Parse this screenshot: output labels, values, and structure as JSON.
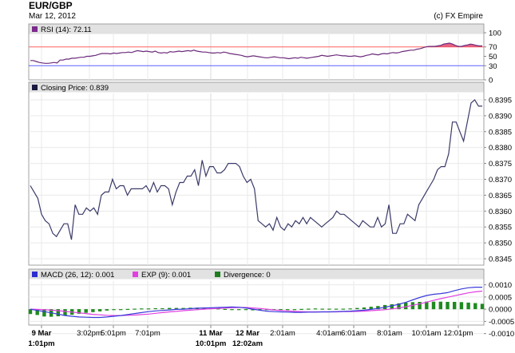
{
  "header": {
    "symbol": "EUR/GBP",
    "date": "Mar 12, 2012",
    "credit": "(c) FX Empire"
  },
  "colors": {
    "rsi_line": "#6b2b7b",
    "rsi_overbought_fill": "#e0486e",
    "rsi_line_70": "#ff6060",
    "rsi_line_30": "#6060ff",
    "price_line": "#3a3a6a",
    "macd_line": "#3b3bdc",
    "exp_line": "#e040e0",
    "divergence_bar": "#1f8a1f",
    "panel_bar": "#e2e2e2",
    "grid": "#e9e9e9"
  },
  "chart_data": [
    {
      "type": "line",
      "panel": "rsi",
      "legend": {
        "label": "RSI (14): 72.11",
        "swatch_color": "#7b2b8b"
      },
      "ylim": [
        0,
        100
      ],
      "y_ticks": [
        "100",
        "70",
        "50",
        "30",
        "0"
      ],
      "reference_levels": [
        70,
        30
      ],
      "series": [
        {
          "name": "RSI (14)",
          "values": [
            41,
            41,
            39,
            37,
            36,
            35,
            35,
            36,
            37,
            36,
            42,
            42,
            44,
            44,
            46,
            46,
            47,
            48,
            48,
            50,
            50,
            51,
            52,
            54,
            56,
            56,
            56,
            55,
            57,
            56,
            57,
            58,
            58,
            59,
            58,
            60,
            62,
            61,
            60,
            61,
            60,
            59,
            61,
            58,
            57,
            58,
            57,
            60,
            59,
            60,
            61,
            60,
            61,
            62,
            61,
            63,
            61,
            60,
            59,
            59,
            58,
            57,
            57,
            58,
            57,
            59,
            58,
            56,
            55,
            54,
            53,
            52,
            50,
            49,
            50,
            51,
            50,
            49,
            48,
            47,
            47,
            48,
            49,
            48,
            47,
            47,
            46,
            45,
            46,
            47,
            46,
            48,
            47,
            46,
            47,
            48,
            49,
            50,
            52,
            51,
            50,
            51,
            52,
            53,
            52,
            51,
            51,
            50,
            50,
            51,
            50,
            49,
            50,
            52,
            53,
            55,
            54,
            53,
            55,
            56,
            55,
            57,
            58,
            57,
            58,
            60,
            61,
            62,
            63,
            63,
            65,
            66,
            68,
            70,
            71,
            71,
            71,
            72,
            73,
            76,
            77,
            78,
            76,
            73,
            71,
            71,
            73,
            74,
            76,
            75,
            73,
            72,
            72
          ]
        }
      ]
    },
    {
      "type": "line",
      "panel": "price",
      "legend": {
        "label": "Closing Price: 0.839",
        "swatch_color": "#1a1a40"
      },
      "ylim": [
        0.8343,
        0.8397
      ],
      "y_ticks": [
        "0.8395",
        "0.8390",
        "0.8385",
        "0.8380",
        "0.8375",
        "0.8370",
        "0.8365",
        "0.8360",
        "0.8355",
        "0.8350",
        "0.8345"
      ],
      "series": [
        {
          "name": "Closing Price",
          "values": [
            0.8368,
            0.8366,
            0.8364,
            0.8359,
            0.8357,
            0.8356,
            0.8353,
            0.8352,
            0.8354,
            0.8356,
            0.8356,
            0.8351,
            0.8362,
            0.8359,
            0.8359,
            0.8361,
            0.836,
            0.8361,
            0.8359,
            0.8365,
            0.8366,
            0.8366,
            0.837,
            0.8367,
            0.8368,
            0.8368,
            0.8365,
            0.8367,
            0.8367,
            0.8367,
            0.8367,
            0.8368,
            0.8366,
            0.8369,
            0.8366,
            0.8368,
            0.8368,
            0.8367,
            0.8362,
            0.8366,
            0.8369,
            0.8369,
            0.8371,
            0.8371,
            0.8373,
            0.8368,
            0.8376,
            0.8371,
            0.8374,
            0.8374,
            0.8372,
            0.8372,
            0.8373,
            0.8375,
            0.8375,
            0.8375,
            0.8374,
            0.8371,
            0.8369,
            0.837,
            0.8367,
            0.8357,
            0.8356,
            0.8355,
            0.8356,
            0.8354,
            0.8358,
            0.8355,
            0.8354,
            0.8356,
            0.8355,
            0.8357,
            0.8356,
            0.8358,
            0.8356,
            0.8358,
            0.8357,
            0.8356,
            0.8355,
            0.8356,
            0.8357,
            0.8358,
            0.836,
            0.8359,
            0.8359,
            0.8358,
            0.8357,
            0.8356,
            0.8355,
            0.8357,
            0.8356,
            0.8355,
            0.8355,
            0.8358,
            0.8355,
            0.8356,
            0.8362,
            0.8353,
            0.8353,
            0.8356,
            0.8356,
            0.8359,
            0.8358,
            0.8357,
            0.8362,
            0.8364,
            0.8366,
            0.8368,
            0.837,
            0.8373,
            0.8374,
            0.8374,
            0.8378,
            0.8388,
            0.8388,
            0.8385,
            0.8382,
            0.8388,
            0.8394,
            0.8395,
            0.8393,
            0.8393
          ]
        }
      ]
    },
    {
      "type": "bar",
      "panel": "macd",
      "legend": [
        {
          "label": "MACD (26, 12): 0.001",
          "swatch_color": "#2d2dd0"
        },
        {
          "label": "EXP (9): 0.001",
          "swatch_color": "#e040e0"
        },
        {
          "label": "Divergence: 0",
          "swatch_color": "#1f7f1f"
        }
      ],
      "ylim": [
        -0.00065,
        0.00115
      ],
      "y_ticks": [
        "0.0010",
        "0.0005",
        "0.0000",
        "-0.0005",
        "-0.0010"
      ],
      "x_ticks": [
        {
          "line1": "9 Mar",
          "line2": "1:01pm",
          "bold": true
        },
        {
          "line1": "3:02pm",
          "line2": "",
          "bold": false
        },
        {
          "line1": "5:01pm",
          "line2": "",
          "bold": false
        },
        {
          "line1": "7:01pm",
          "line2": "",
          "bold": false
        },
        {
          "line1": "11 Mar",
          "line2": "10:01pm",
          "bold": true
        },
        {
          "line1": "12 Mar",
          "line2": "12:02am",
          "bold": true
        },
        {
          "line1": "2:01am",
          "line2": "",
          "bold": false
        },
        {
          "line1": "4:01am",
          "line2": "",
          "bold": false
        },
        {
          "line1": "6:01am",
          "line2": "",
          "bold": false
        },
        {
          "line1": "8:01am",
          "line2": "",
          "bold": false
        },
        {
          "line1": "10:01am",
          "line2": "",
          "bold": false
        },
        {
          "line1": "12:01pm",
          "line2": "",
          "bold": false
        }
      ],
      "series": [
        {
          "name": "MACD (26, 12)",
          "values": [
            0.0,
            -5e-05,
            -0.0001,
            -0.00015,
            -0.0002,
            -0.00026,
            -0.00029,
            -0.00032,
            -0.00033,
            -0.00034,
            -0.00034,
            -0.00032,
            -0.00029,
            -0.00026,
            -0.00022,
            -0.00018,
            -0.00014,
            -0.0001,
            -7e-05,
            -5e-05,
            -3e-05,
            -1e-05,
            0.0,
            2e-05,
            4e-05,
            5e-05,
            6e-05,
            7e-05,
            8e-05,
            9e-05,
            8e-05,
            5e-05,
            0.0,
            -4e-05,
            -8e-05,
            -0.0001,
            -0.00011,
            -0.00012,
            -0.00013,
            -0.00013,
            -0.00012,
            -0.00012,
            -0.00011,
            -0.00011,
            -0.0001,
            -9e-05,
            -8e-05,
            -6e-05,
            -4e-05,
            -1e-05,
            3e-05,
            8e-05,
            0.00014,
            0.0002,
            0.00028,
            0.00038,
            0.00048,
            0.00056,
            0.00061,
            0.00064,
            0.00068,
            0.00076,
            0.00083,
            0.00088,
            0.0009,
            0.0009
          ]
        },
        {
          "name": "EXP (9)",
          "values": [
            0.0,
            -1e-05,
            -2e-05,
            -4e-05,
            -6e-05,
            -9e-05,
            -0.00012,
            -0.00015,
            -0.00018,
            -0.00021,
            -0.00023,
            -0.00025,
            -0.00026,
            -0.00026,
            -0.00025,
            -0.00024,
            -0.00022,
            -0.0002,
            -0.00017,
            -0.00014,
            -0.00011,
            -9e-05,
            -6e-05,
            -4e-05,
            -2e-05,
            0.0,
            2e-05,
            3e-05,
            5e-05,
            6e-05,
            7e-05,
            7e-05,
            5e-05,
            3e-05,
            0.0,
            -3e-05,
            -5e-05,
            -7e-05,
            -9e-05,
            -0.0001,
            -0.00011,
            -0.00011,
            -0.00011,
            -0.00011,
            -0.00011,
            -0.0001,
            -0.0001,
            -9e-05,
            -8e-05,
            -6e-05,
            -4e-05,
            -2e-05,
            1e-05,
            5e-05,
            0.0001,
            0.00016,
            0.00022,
            0.00029,
            0.00036,
            0.00043,
            0.00049,
            0.00055,
            0.00061,
            0.00067,
            0.00071,
            0.00074
          ]
        },
        {
          "name": "Divergence",
          "values": [
            -0.0002,
            -0.00024,
            -0.0003,
            -0.00031,
            -0.00029,
            -0.00026,
            -0.00023,
            -0.00019,
            -0.00015,
            -0.00012,
            -9e-05,
            -6e-05,
            -3e-05,
            -1e-05,
            1e-05,
            2e-05,
            3e-05,
            3e-05,
            4e-05,
            4e-05,
            5e-05,
            5e-05,
            5e-05,
            6e-05,
            6e-05,
            5e-05,
            4e-05,
            3e-05,
            1e-05,
            -1e-05,
            -3e-05,
            -4e-05,
            -5e-05,
            -5e-05,
            -4e-05,
            -3e-05,
            -2e-05,
            -1e-05,
            0.0,
            1e-05,
            2e-05,
            3e-05,
            2e-05,
            2e-05,
            2e-05,
            2e-05,
            3e-05,
            5e-05,
            7e-05,
            0.0001,
            0.00013,
            0.00017,
            0.0002,
            0.00024,
            0.00027,
            0.00029,
            0.0003,
            0.00031,
            0.00031,
            0.00031,
            0.0003,
            0.0003,
            0.00029,
            0.00027,
            0.00025,
            0.00022
          ]
        }
      ]
    }
  ]
}
